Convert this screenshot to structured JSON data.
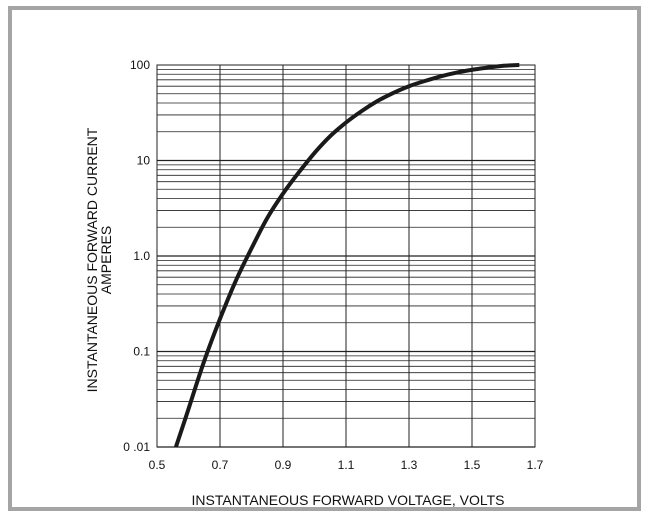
{
  "chart_data": {
    "type": "line",
    "title": "",
    "xlabel": "INSTANTANEOUS FORWARD VOLTAGE, VOLTS",
    "ylabel_line1": "INSTANTANEOUS FORWARD CURRENT",
    "ylabel_line2": "AMPERES",
    "xlim": [
      0.5,
      1.7
    ],
    "ylim": [
      0.01,
      100
    ],
    "y_scale": "log",
    "grid": true,
    "x_ticks": [
      0.5,
      0.7,
      0.9,
      1.1,
      1.3,
      1.5,
      1.7
    ],
    "x_tick_labels": [
      "0.5",
      "0.7",
      "0.9",
      "1.1",
      "1.3",
      "1.5",
      "1.7"
    ],
    "y_ticks": [
      0.01,
      0.1,
      1,
      10,
      100
    ],
    "y_tick_labels": [
      "0 .01",
      "0.1",
      "1.0",
      "10",
      "100"
    ],
    "line_color": "#1a1a1a",
    "grid_color": "#222222",
    "frame_color": "#a5a5a5",
    "series": [
      {
        "x": [
          0.56,
          0.6,
          0.65,
          0.7,
          0.75,
          0.8,
          0.85,
          0.9,
          0.95,
          1.0,
          1.05,
          1.1,
          1.15,
          1.2,
          1.25,
          1.3,
          1.35,
          1.4,
          1.45,
          1.5,
          1.55,
          1.6,
          1.65
        ],
        "y": [
          0.01,
          0.025,
          0.08,
          0.22,
          0.55,
          1.2,
          2.5,
          4.5,
          7.5,
          12,
          18,
          25,
          33,
          42,
          51,
          60,
          68,
          76,
          83,
          89,
          94,
          98,
          100
        ]
      }
    ]
  }
}
